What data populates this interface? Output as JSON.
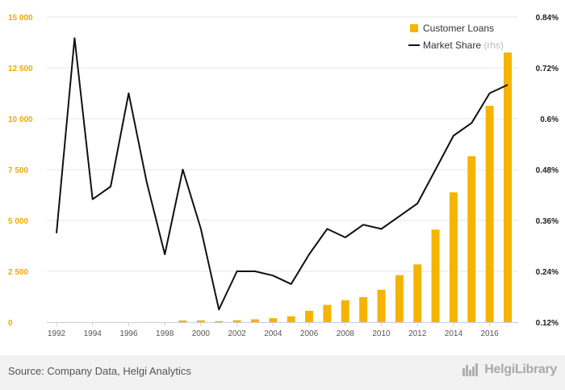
{
  "chart_data": {
    "type": "bar",
    "x": [
      "1992",
      "1993",
      "1994",
      "1995",
      "1996",
      "1997",
      "1998",
      "1999",
      "2000",
      "2001",
      "2002",
      "2003",
      "2004",
      "2005",
      "2006",
      "2007",
      "2008",
      "2009",
      "2010",
      "2011",
      "2012",
      "2013",
      "2014",
      "2015",
      "2016",
      "2017"
    ],
    "series": [
      {
        "name": "Customer Loans",
        "type": "bar",
        "axis": "left",
        "color": "#f5b400",
        "values": [
          0,
          0,
          0,
          0,
          0,
          0,
          0,
          85,
          90,
          50,
          95,
          140,
          195,
          290,
          560,
          850,
          1080,
          1230,
          1590,
          2310,
          2840,
          4550,
          6380,
          8160,
          10630,
          13250
        ]
      },
      {
        "name": "Market Share",
        "suffix": "(rhs)",
        "type": "line",
        "axis": "right",
        "color": "#111111",
        "values": [
          0.33,
          0.79,
          0.41,
          0.44,
          0.66,
          0.45,
          0.28,
          0.48,
          0.34,
          0.15,
          0.24,
          0.24,
          0.23,
          0.21,
          0.28,
          0.34,
          0.32,
          0.35,
          0.34,
          0.37,
          0.4,
          0.48,
          0.56,
          0.59,
          0.66,
          0.68
        ]
      }
    ],
    "ylim_left": [
      0,
      15000
    ],
    "ylim_right": [
      0.12,
      0.84
    ],
    "yticks_left": [
      "0",
      "2 500",
      "5 000",
      "7 500",
      "10 000",
      "12 500",
      "15 000"
    ],
    "yticks_right": [
      "0.12%",
      "0.24%",
      "0.36%",
      "0.48%",
      "0.6%",
      "0.72%",
      "0.84%"
    ],
    "xticks": [
      "1992",
      "1994",
      "1996",
      "1998",
      "2000",
      "2002",
      "2004",
      "2006",
      "2008",
      "2010",
      "2012",
      "2014",
      "2016"
    ],
    "grid": true,
    "legend_position": "top-right"
  },
  "footer": {
    "source": "Source: Company Data, Helgi Analytics",
    "brand": "HelgiLibrary"
  }
}
